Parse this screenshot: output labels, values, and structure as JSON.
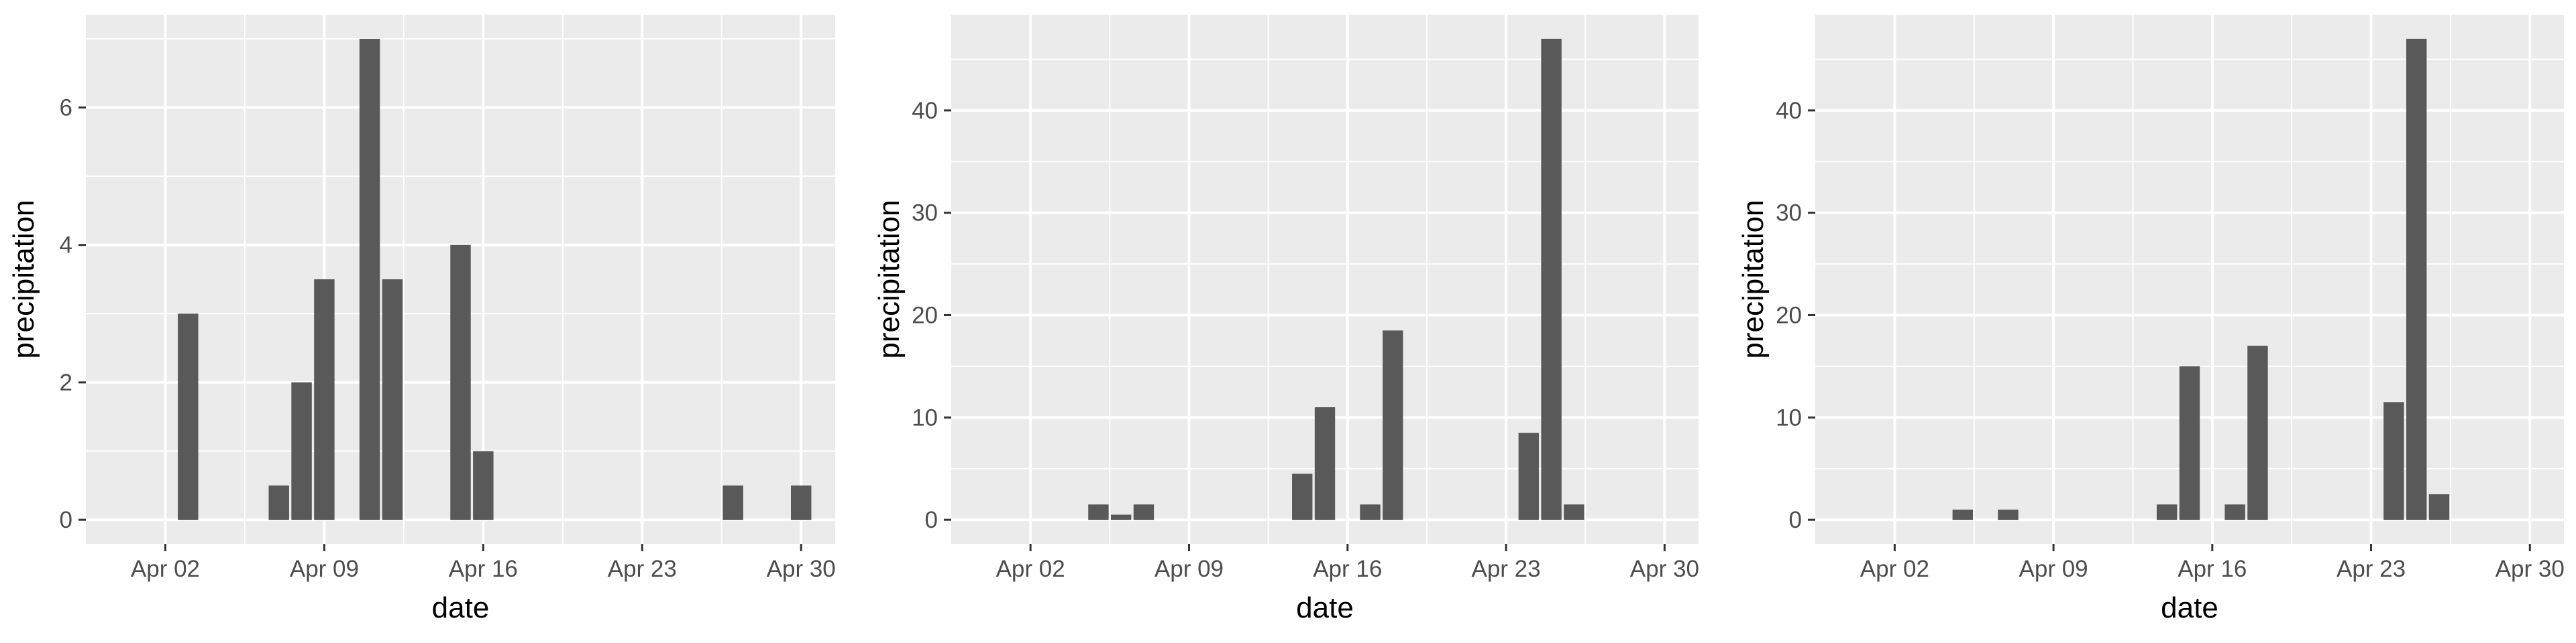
{
  "chart_data": [
    {
      "type": "bar",
      "xlabel": "date",
      "ylabel": "precipitation",
      "x_ticks": [
        "Apr 02",
        "Apr 09",
        "Apr 16",
        "Apr 23",
        "Apr 30"
      ],
      "y_ticks": [
        "0",
        "2",
        "4",
        "6"
      ],
      "ylim": [
        0,
        7
      ],
      "x": [
        "Apr 03",
        "Apr 07",
        "Apr 08",
        "Apr 09",
        "Apr 11",
        "Apr 12",
        "Apr 15",
        "Apr 16",
        "Apr 27",
        "Apr 30"
      ],
      "values": [
        3,
        0.5,
        2,
        3.5,
        7,
        3.5,
        4,
        1,
        0.5,
        0.5
      ],
      "grid": true,
      "bar_color": "#595959",
      "panel_color": "#ebebeb"
    },
    {
      "type": "bar",
      "xlabel": "date",
      "ylabel": "precipitation",
      "x_ticks": [
        "Apr 02",
        "Apr 09",
        "Apr 16",
        "Apr 23",
        "Apr 30"
      ],
      "y_ticks": [
        "0",
        "10",
        "20",
        "30",
        "40"
      ],
      "ylim": [
        0,
        47
      ],
      "x": [
        "Apr 05",
        "Apr 06",
        "Apr 07",
        "Apr 14",
        "Apr 15",
        "Apr 17",
        "Apr 18",
        "Apr 24",
        "Apr 25",
        "Apr 26"
      ],
      "values": [
        1.5,
        0.5,
        1.5,
        4.5,
        11,
        1.5,
        18.5,
        8.5,
        47,
        1.5
      ],
      "grid": true,
      "bar_color": "#595959",
      "panel_color": "#ebebeb"
    },
    {
      "type": "bar",
      "xlabel": "date",
      "ylabel": "precipitation",
      "x_ticks": [
        "Apr 02",
        "Apr 09",
        "Apr 16",
        "Apr 23",
        "Apr 30"
      ],
      "y_ticks": [
        "0",
        "10",
        "20",
        "30",
        "40"
      ],
      "ylim": [
        0,
        47
      ],
      "x": [
        "Apr 05",
        "Apr 07",
        "Apr 14",
        "Apr 15",
        "Apr 17",
        "Apr 18",
        "Apr 24",
        "Apr 25",
        "Apr 26"
      ],
      "values": [
        1,
        1,
        1.5,
        15,
        1.5,
        17,
        11.5,
        47,
        2.5
      ],
      "grid": true,
      "bar_color": "#595959",
      "panel_color": "#ebebeb"
    }
  ]
}
